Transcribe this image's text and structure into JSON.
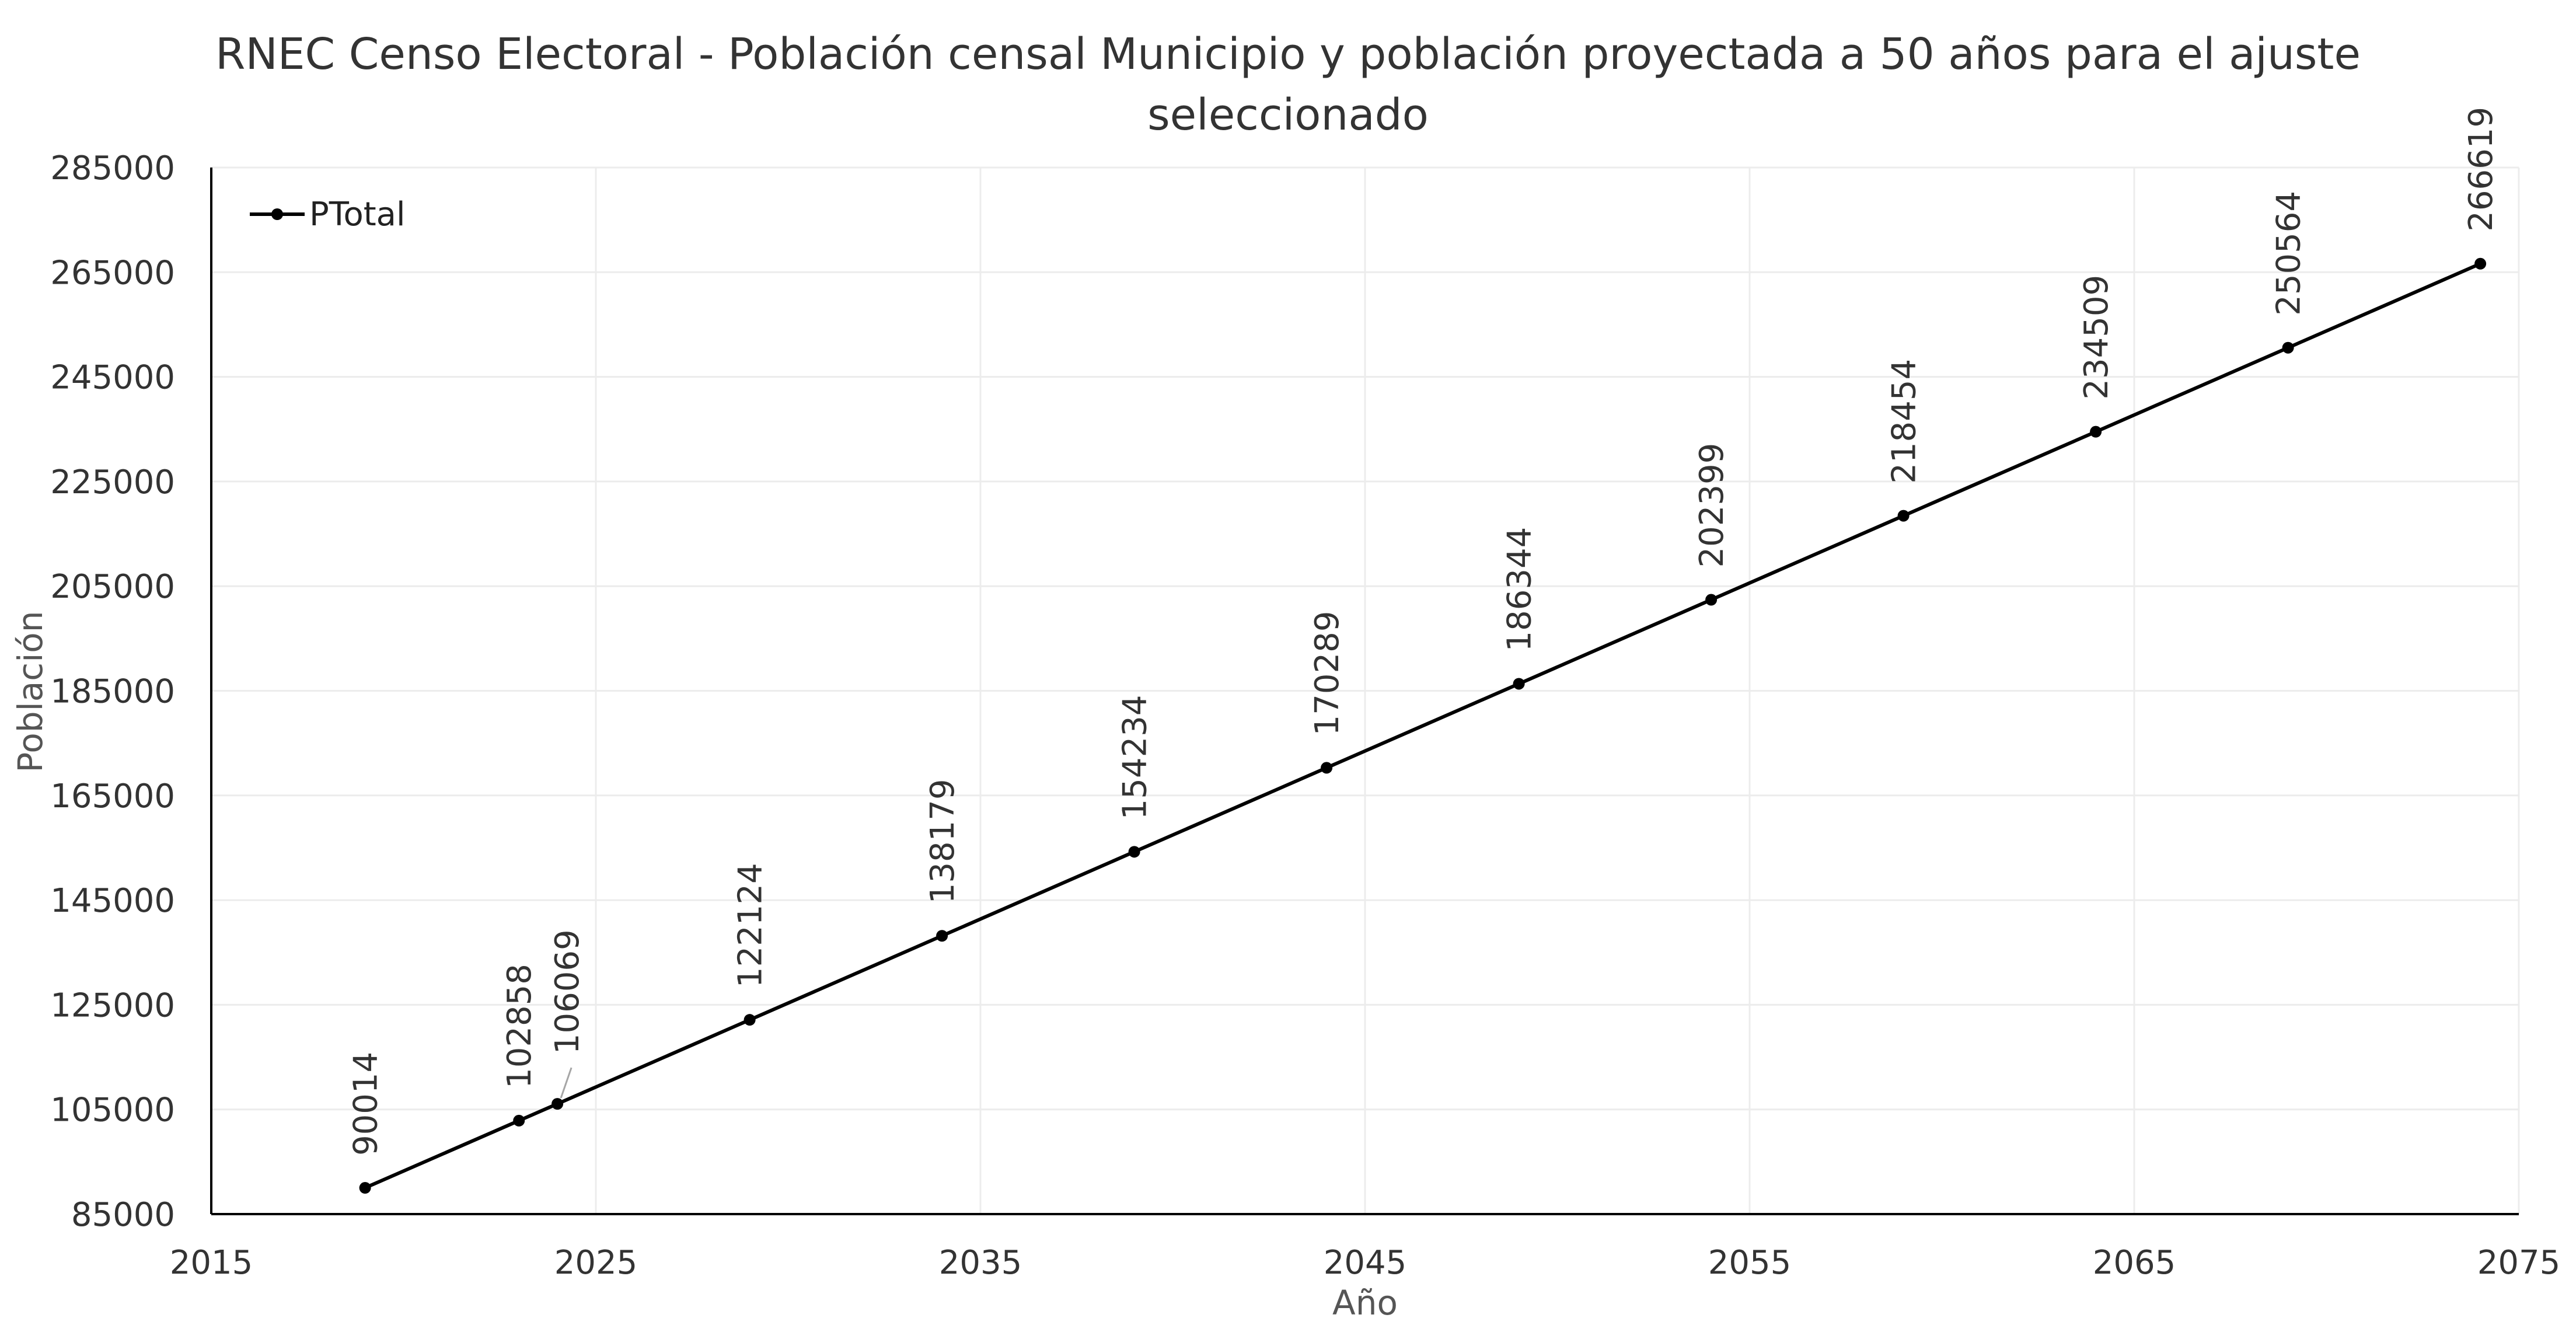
{
  "colors": {
    "series_line": "#000000",
    "gridline": "#ececec",
    "axis": "#000000",
    "leader_line": "#a6a6a6"
  },
  "chart_data": {
    "type": "scatter",
    "title": "RNEC Censo Electoral - Población censal Municipio y población proyectada a 50 años para el ajuste seleccionado",
    "title_lines": [
      "RNEC Censo Electoral - Población censal Municipio y población proyectada a 50 años para el ajuste",
      "seleccionado"
    ],
    "xlabel": "Año",
    "ylabel": "Población",
    "xlim": [
      2015,
      2075
    ],
    "ylim": [
      85000,
      285000
    ],
    "x_ticks": [
      2015,
      2025,
      2035,
      2045,
      2055,
      2065,
      2075
    ],
    "y_ticks": [
      85000,
      105000,
      125000,
      145000,
      165000,
      185000,
      205000,
      225000,
      245000,
      265000,
      285000
    ],
    "grid": true,
    "legend_position": "top-left",
    "series": [
      {
        "name": "PTotal",
        "style": "line-with-markers",
        "x": [
          2019,
          2023,
          2024,
          2029,
          2034,
          2039,
          2044,
          2049,
          2054,
          2059,
          2064,
          2069,
          2074
        ],
        "y": [
          90014,
          102858,
          106069,
          122124,
          138179,
          154234,
          170289,
          186344,
          202399,
          218454,
          234509,
          250564,
          266619
        ],
        "data_labels": [
          "90014",
          "102858",
          "106069",
          "122124",
          "138179",
          "154234",
          "170289",
          "186344",
          "202399",
          "218454",
          "234509",
          "250564",
          "266619"
        ]
      }
    ]
  }
}
